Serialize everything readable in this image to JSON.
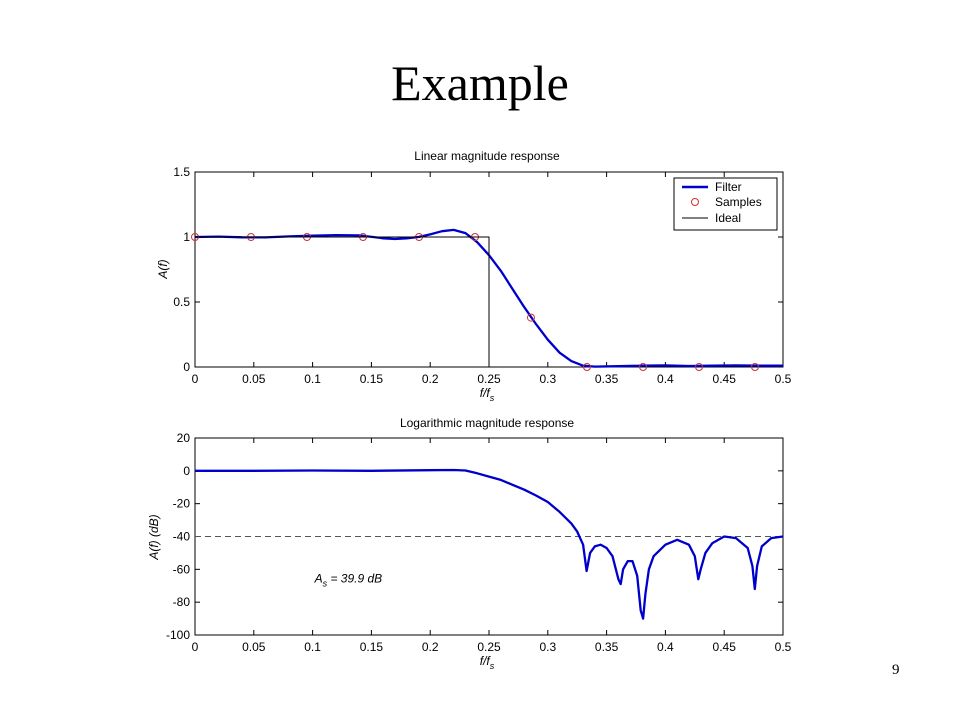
{
  "slide": {
    "title": "Example",
    "page_number": "9"
  },
  "colors": {
    "filter": "#0000cc",
    "samples": "#cc3333",
    "ideal": "#000000",
    "threshold": "#555555"
  },
  "chart_data": [
    {
      "type": "line",
      "title": "Linear magnitude response",
      "xlabel": "f/f",
      "xlabel_sub": "s",
      "ylabel": "A(f)",
      "xlim": [
        0,
        0.5
      ],
      "ylim": [
        0,
        1.5
      ],
      "xticks": [
        "0",
        "0.05",
        "0.1",
        "0.15",
        "0.2",
        "0.25",
        "0.3",
        "0.35",
        "0.4",
        "0.45",
        "0.5"
      ],
      "yticks": [
        "0",
        "0.5",
        "1",
        "1.5"
      ],
      "legend": {
        "placement": "top-right",
        "entries": [
          "Filter",
          "Samples",
          "Ideal"
        ]
      },
      "series": [
        {
          "name": "Filter",
          "style": "line",
          "x": [
            0,
            0.02,
            0.04,
            0.06,
            0.08,
            0.1,
            0.12,
            0.14,
            0.16,
            0.17,
            0.18,
            0.19,
            0.2,
            0.21,
            0.22,
            0.23,
            0.24,
            0.25,
            0.26,
            0.27,
            0.28,
            0.29,
            0.3,
            0.31,
            0.32,
            0.33,
            0.34,
            0.36,
            0.38,
            0.4,
            0.42,
            0.44,
            0.46,
            0.48,
            0.5
          ],
          "y": [
            1.0,
            1.003,
            0.998,
            0.997,
            1.005,
            1.01,
            1.015,
            1.012,
            0.99,
            0.985,
            0.99,
            1.0,
            1.02,
            1.045,
            1.055,
            1.03,
            0.96,
            0.86,
            0.74,
            0.6,
            0.46,
            0.33,
            0.21,
            0.11,
            0.045,
            0.01,
            0.003,
            0.006,
            0.01,
            0.012,
            0.008,
            0.01,
            0.012,
            0.01,
            0.01
          ]
        },
        {
          "name": "Samples",
          "style": "markers",
          "x": [
            0,
            0.0476,
            0.0952,
            0.1429,
            0.1905,
            0.2381,
            0.2857,
            0.3333,
            0.381,
            0.4286,
            0.4762
          ],
          "y": [
            1,
            1,
            1,
            1,
            1,
            1,
            0.38,
            0,
            0,
            0,
            0
          ]
        },
        {
          "name": "Ideal",
          "style": "step",
          "x": [
            0,
            0.25,
            0.25
          ],
          "y": [
            1,
            1,
            0
          ]
        }
      ]
    },
    {
      "type": "line",
      "title": "Logarithmic magnitude response",
      "xlabel": "f/f",
      "xlabel_sub": "s",
      "ylabel": "A(f) (dB)",
      "xlim": [
        0,
        0.5
      ],
      "ylim": [
        -100,
        20
      ],
      "xticks": [
        "0",
        "0.05",
        "0.1",
        "0.15",
        "0.2",
        "0.25",
        "0.3",
        "0.35",
        "0.4",
        "0.45",
        "0.5"
      ],
      "yticks": [
        "20",
        "0",
        "-20",
        "-40",
        "-60",
        "-80",
        "-100"
      ],
      "annotation": {
        "main": "A",
        "sub": "s",
        "rest": " = 39.9 dB",
        "x": 0.1,
        "y": -68
      },
      "threshold": {
        "y": -40,
        "style": "dashed"
      },
      "series": [
        {
          "name": "Filter",
          "style": "line",
          "x": [
            0,
            0.05,
            0.1,
            0.15,
            0.2,
            0.22,
            0.23,
            0.24,
            0.25,
            0.26,
            0.27,
            0.28,
            0.29,
            0.3,
            0.31,
            0.32,
            0.325,
            0.33,
            0.333,
            0.336,
            0.34,
            0.345,
            0.35,
            0.355,
            0.36,
            0.362,
            0.364,
            0.368,
            0.372,
            0.376,
            0.379,
            0.381,
            0.383,
            0.386,
            0.39,
            0.4,
            0.41,
            0.42,
            0.425,
            0.428,
            0.43,
            0.434,
            0.44,
            0.45,
            0.46,
            0.47,
            0.474,
            0.476,
            0.478,
            0.482,
            0.49,
            0.5
          ],
          "y": [
            0,
            0,
            0.2,
            0,
            0.4,
            0.5,
            0.2,
            -1.5,
            -3.5,
            -5.5,
            -8.5,
            -11.5,
            -15,
            -19,
            -25,
            -32,
            -37,
            -45,
            -61,
            -50,
            -46,
            -45,
            -47,
            -52,
            -66,
            -69,
            -60,
            -55,
            -55,
            -64,
            -85,
            -90,
            -75,
            -60,
            -52,
            -45,
            -42,
            -45,
            -52,
            -66,
            -60,
            -50,
            -44,
            -40,
            -41,
            -47,
            -58,
            -72,
            -58,
            -46,
            -41,
            -40
          ]
        }
      ]
    }
  ]
}
